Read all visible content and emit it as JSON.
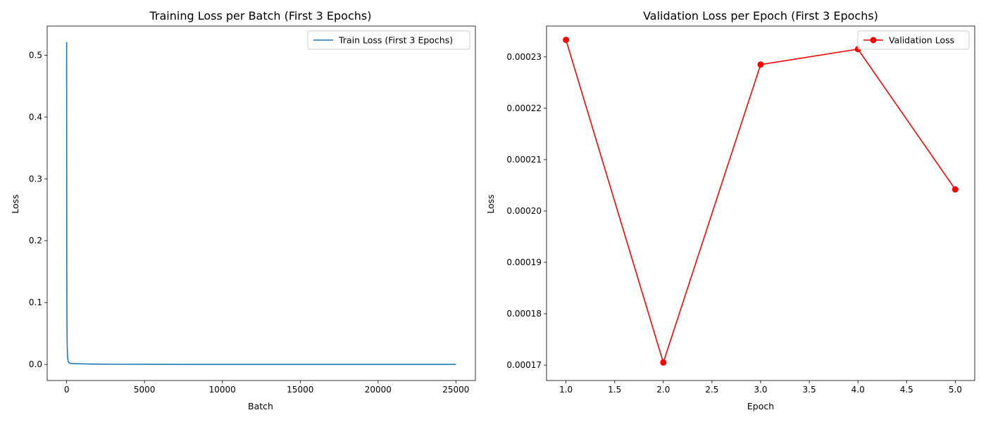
{
  "chart_data": [
    {
      "type": "line",
      "title": "Training Loss per Batch (First 3 Epochs)",
      "xlabel": "Batch",
      "ylabel": "Loss",
      "xlim": [
        -1250,
        26250
      ],
      "ylim": [
        -0.026,
        0.547
      ],
      "xticks": [
        0,
        5000,
        10000,
        15000,
        20000,
        25000
      ],
      "xtick_labels": [
        "0",
        "5000",
        "10000",
        "15000",
        "20000",
        "25000"
      ],
      "yticks": [
        0.0,
        0.1,
        0.2,
        0.3,
        0.4,
        0.5
      ],
      "ytick_labels": [
        "0.0",
        "0.1",
        "0.2",
        "0.3",
        "0.4",
        "0.5"
      ],
      "grid": false,
      "legend_position": "top-right",
      "series": [
        {
          "name": "Train Loss (First 3 Epochs)",
          "color": "#1f77b4",
          "marker": "none",
          "x": [
            0,
            5,
            10,
            20,
            30,
            40,
            60,
            80,
            100,
            150,
            200,
            300,
            500,
            800,
            1200,
            2000,
            3000,
            5000,
            8000,
            12000,
            16000,
            20000,
            25000
          ],
          "y": [
            0.521,
            0.3,
            0.15,
            0.07,
            0.04,
            0.025,
            0.012,
            0.008,
            0.005,
            0.003,
            0.002,
            0.0015,
            0.0012,
            0.001,
            0.0008,
            0.0005,
            0.0003,
            0.0002,
            0.0001,
            0.0001,
            0.0001,
            0.0001,
            0.0001
          ]
        }
      ]
    },
    {
      "type": "line",
      "title": "Validation Loss per Epoch (First 3 Epochs)",
      "xlabel": "Epoch",
      "ylabel": "Loss",
      "xlim": [
        0.8,
        5.2
      ],
      "ylim": [
        0.000167,
        0.000236
      ],
      "xticks": [
        1.0,
        1.5,
        2.0,
        2.5,
        3.0,
        3.5,
        4.0,
        4.5,
        5.0
      ],
      "xtick_labels": [
        "1.0",
        "1.5",
        "2.0",
        "2.5",
        "3.0",
        "3.5",
        "4.0",
        "4.5",
        "5.0"
      ],
      "yticks": [
        0.00017,
        0.00018,
        0.00019,
        0.0002,
        0.00021,
        0.00022,
        0.00023
      ],
      "ytick_labels": [
        "0.00017",
        "0.00018",
        "0.00019",
        "0.00020",
        "0.00021",
        "0.00022",
        "0.00023"
      ],
      "grid": false,
      "legend_position": "top-right",
      "series": [
        {
          "name": "Validation Loss",
          "color": "#ff0000",
          "marker": "circle",
          "x": [
            1,
            2,
            3,
            4,
            5
          ],
          "y": [
            0.0002333,
            0.0001705,
            0.0002285,
            0.0002315,
            0.0002042
          ]
        }
      ]
    }
  ]
}
